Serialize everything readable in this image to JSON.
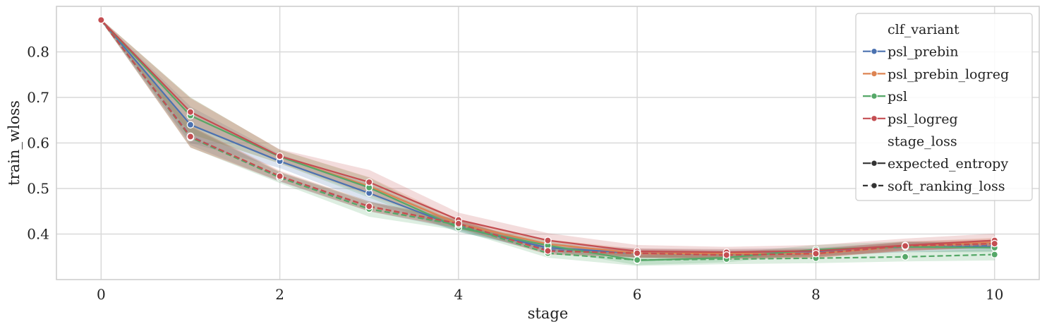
{
  "chart_data": {
    "type": "line",
    "xlabel": "stage",
    "ylabel": "train_wloss",
    "xlim": [
      -0.5,
      10.5
    ],
    "ylim": [
      0.3,
      0.9
    ],
    "xticks": [
      0,
      2,
      4,
      6,
      8,
      10
    ],
    "yticks": [
      0.4,
      0.5,
      0.6,
      0.7,
      0.8
    ],
    "grid": true,
    "legend_position": "top-right",
    "legend": {
      "hue_title": "clf_variant",
      "style_title": "stage_loss",
      "hue_items": [
        {
          "label": "psl_prebin",
          "color": "#4c72b0"
        },
        {
          "label": "psl_prebin_logreg",
          "color": "#dd8452"
        },
        {
          "label": "psl",
          "color": "#55a868"
        },
        {
          "label": "psl_logreg",
          "color": "#c44e52"
        }
      ],
      "style_items": [
        {
          "label": "expected_entropy",
          "dash": "solid"
        },
        {
          "label": "soft_ranking_loss",
          "dash": "dashed"
        }
      ]
    },
    "x": [
      0,
      1,
      2,
      3,
      4,
      5,
      6,
      7,
      8,
      9,
      10
    ],
    "series": [
      {
        "variant": "psl_prebin",
        "stage_loss": "expected_entropy",
        "color": "#4c72b0",
        "values": [
          0.87,
          0.64,
          0.56,
          0.49,
          0.415,
          0.37,
          0.358,
          0.357,
          0.36,
          0.372,
          0.372
        ],
        "lower": [
          0.868,
          0.6,
          0.545,
          0.47,
          0.405,
          0.36,
          0.348,
          0.347,
          0.352,
          0.36,
          0.362
        ],
        "upper": [
          0.872,
          0.68,
          0.575,
          0.51,
          0.425,
          0.38,
          0.368,
          0.367,
          0.37,
          0.382,
          0.382
        ]
      },
      {
        "variant": "psl_prebin",
        "stage_loss": "soft_ranking_loss",
        "color": "#4c72b0",
        "values": [
          0.87,
          0.615,
          0.525,
          0.46,
          0.42,
          0.365,
          0.357,
          0.355,
          0.358,
          0.374,
          0.376
        ],
        "lower": [
          0.868,
          0.595,
          0.515,
          0.45,
          0.41,
          0.357,
          0.349,
          0.347,
          0.35,
          0.366,
          0.368
        ],
        "upper": [
          0.872,
          0.635,
          0.535,
          0.47,
          0.43,
          0.373,
          0.365,
          0.363,
          0.366,
          0.382,
          0.384
        ]
      },
      {
        "variant": "psl_prebin_logreg",
        "stage_loss": "expected_entropy",
        "color": "#dd8452",
        "values": [
          0.87,
          0.66,
          0.57,
          0.505,
          0.422,
          0.378,
          0.358,
          0.357,
          0.358,
          0.373,
          0.382
        ],
        "lower": [
          0.868,
          0.62,
          0.555,
          0.485,
          0.412,
          0.368,
          0.348,
          0.347,
          0.348,
          0.363,
          0.372
        ],
        "upper": [
          0.872,
          0.7,
          0.585,
          0.525,
          0.432,
          0.388,
          0.368,
          0.367,
          0.368,
          0.383,
          0.392
        ]
      },
      {
        "variant": "psl_prebin_logreg",
        "stage_loss": "soft_ranking_loss",
        "color": "#dd8452",
        "values": [
          0.87,
          0.614,
          0.527,
          0.46,
          0.422,
          0.363,
          0.357,
          0.354,
          0.356,
          0.373,
          0.378
        ],
        "lower": [
          0.868,
          0.59,
          0.517,
          0.45,
          0.412,
          0.355,
          0.349,
          0.346,
          0.348,
          0.365,
          0.37
        ],
        "upper": [
          0.872,
          0.638,
          0.537,
          0.47,
          0.432,
          0.371,
          0.365,
          0.362,
          0.364,
          0.381,
          0.386
        ]
      },
      {
        "variant": "psl",
        "stage_loss": "expected_entropy",
        "color": "#55a868",
        "values": [
          0.87,
          0.66,
          0.57,
          0.502,
          0.414,
          0.375,
          0.342,
          0.348,
          0.366,
          0.372,
          0.37
        ],
        "lower": [
          0.868,
          0.62,
          0.555,
          0.48,
          0.404,
          0.365,
          0.332,
          0.338,
          0.356,
          0.36,
          0.36
        ],
        "upper": [
          0.872,
          0.7,
          0.585,
          0.524,
          0.424,
          0.385,
          0.352,
          0.358,
          0.376,
          0.384,
          0.38
        ]
      },
      {
        "variant": "psl",
        "stage_loss": "soft_ranking_loss",
        "color": "#55a868",
        "values": [
          0.87,
          0.612,
          0.524,
          0.455,
          0.42,
          0.358,
          0.343,
          0.345,
          0.347,
          0.35,
          0.355
        ],
        "lower": [
          0.868,
          0.59,
          0.512,
          0.438,
          0.408,
          0.348,
          0.33,
          0.334,
          0.336,
          0.34,
          0.342
        ],
        "upper": [
          0.872,
          0.636,
          0.536,
          0.472,
          0.432,
          0.368,
          0.356,
          0.356,
          0.358,
          0.36,
          0.368
        ]
      },
      {
        "variant": "psl_logreg",
        "stage_loss": "expected_entropy",
        "color": "#c44e52",
        "values": [
          0.87,
          0.668,
          0.571,
          0.514,
          0.431,
          0.386,
          0.362,
          0.36,
          0.363,
          0.375,
          0.386
        ],
        "lower": [
          0.868,
          0.638,
          0.558,
          0.488,
          0.415,
          0.37,
          0.348,
          0.348,
          0.35,
          0.362,
          0.372
        ],
        "upper": [
          0.872,
          0.698,
          0.586,
          0.541,
          0.447,
          0.402,
          0.376,
          0.372,
          0.376,
          0.39,
          0.401
        ]
      },
      {
        "variant": "psl_logreg",
        "stage_loss": "soft_ranking_loss",
        "color": "#c44e52",
        "values": [
          0.87,
          0.614,
          0.527,
          0.461,
          0.423,
          0.363,
          0.358,
          0.354,
          0.357,
          0.374,
          0.379
        ],
        "lower": [
          0.868,
          0.59,
          0.515,
          0.45,
          0.413,
          0.355,
          0.348,
          0.344,
          0.347,
          0.364,
          0.369
        ],
        "upper": [
          0.872,
          0.638,
          0.539,
          0.472,
          0.433,
          0.371,
          0.368,
          0.364,
          0.367,
          0.384,
          0.389
        ]
      }
    ]
  }
}
